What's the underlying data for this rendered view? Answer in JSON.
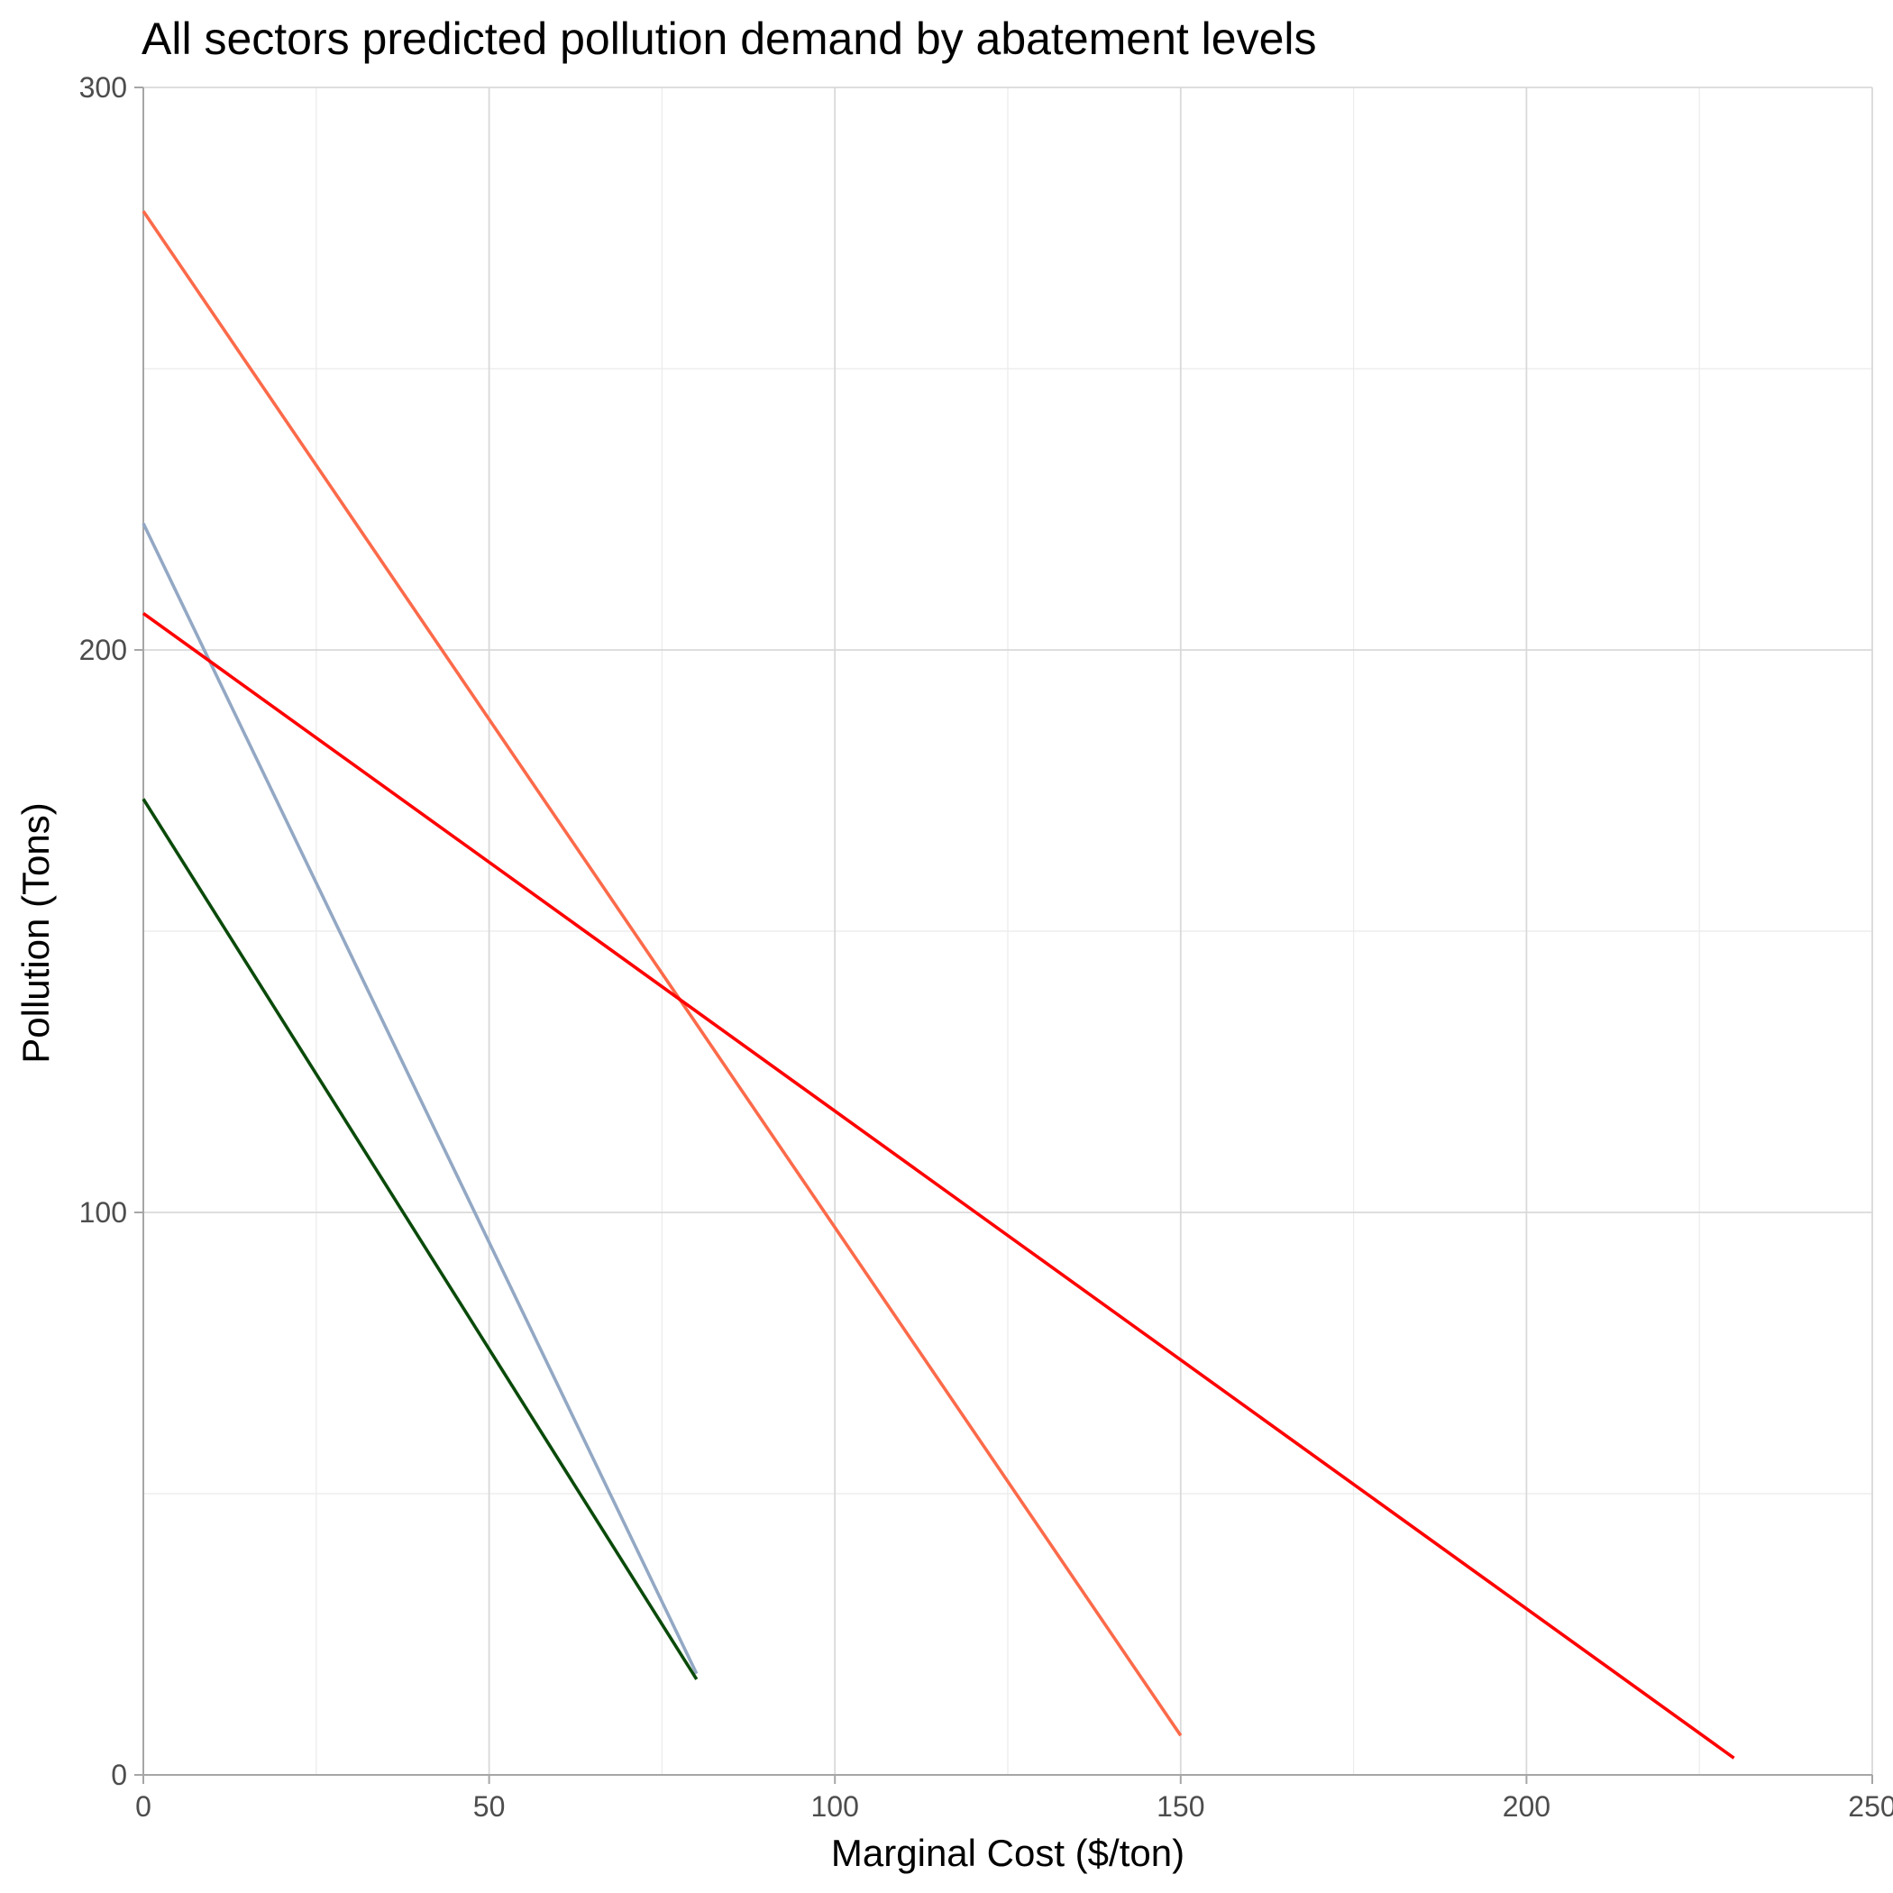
{
  "chart_data": {
    "type": "line",
    "title": "All sectors predicted pollution demand by abatement levels",
    "xlabel": "Marginal Cost ($/ton)",
    "ylabel": "Pollution (Tons)",
    "xlim": [
      0,
      250
    ],
    "ylim": [
      0,
      300
    ],
    "x_ticks": [
      0,
      50,
      100,
      150,
      200,
      250
    ],
    "x_tick_labels": [
      "0",
      "50",
      "100",
      "150",
      "200",
      "250"
    ],
    "y_ticks": [
      0,
      100,
      200,
      300
    ],
    "y_tick_labels": [
      "0",
      "100",
      "200",
      "300"
    ],
    "x_minor_ticks": [
      25,
      75,
      125,
      175,
      225
    ],
    "y_minor_ticks": [
      50,
      150,
      250
    ],
    "grid": true,
    "legend": "none",
    "series": [
      {
        "color": "#fc6a4a",
        "x": [
          0,
          150
        ],
        "y": [
          278,
          7
        ]
      },
      {
        "color": "#93a8c4",
        "x": [
          0,
          80
        ],
        "y": [
          222.5,
          18
        ]
      },
      {
        "color": "#ff0000",
        "x": [
          0,
          230
        ],
        "y": [
          206.5,
          3
        ]
      },
      {
        "color": "#0a4a0a",
        "x": [
          0,
          80
        ],
        "y": [
          173.5,
          17
        ]
      }
    ]
  }
}
